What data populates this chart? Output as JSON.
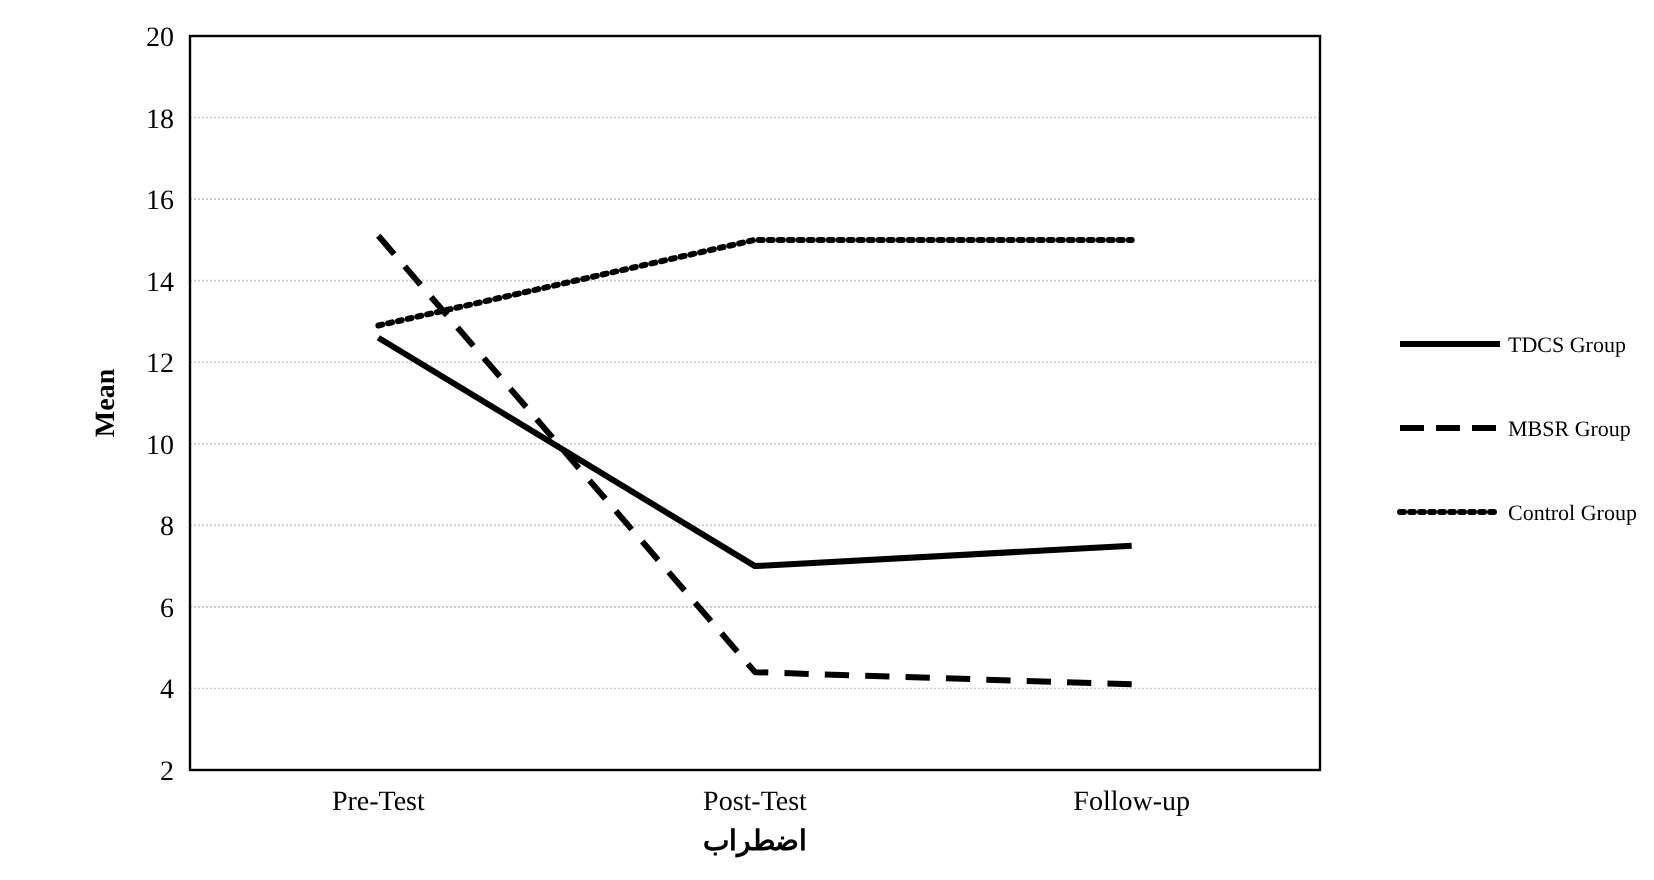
{
  "chart_data": {
    "type": "line",
    "xlabel": "اضطراب",
    "ylabel": "Mean",
    "categories": [
      "Pre-Test",
      "Post-Test",
      "Follow-up"
    ],
    "series": [
      {
        "name": "TDCS Group",
        "color": "#000000",
        "line_style": "solid",
        "values": [
          12.6,
          7.0,
          7.5
        ]
      },
      {
        "name": "MBSR Group",
        "color": "#000000",
        "line_style": "dashed",
        "values": [
          15.1,
          4.4,
          4.1
        ]
      },
      {
        "name": "Control Group",
        "color": "#000000",
        "line_style": "dotted",
        "values": [
          12.9,
          15.0,
          15.0
        ]
      }
    ],
    "ylim": [
      2,
      20
    ],
    "yticks": [
      2,
      4,
      6,
      8,
      10,
      12,
      14,
      16,
      18,
      20
    ],
    "grid": "y",
    "legend": "right",
    "marker": "none"
  }
}
